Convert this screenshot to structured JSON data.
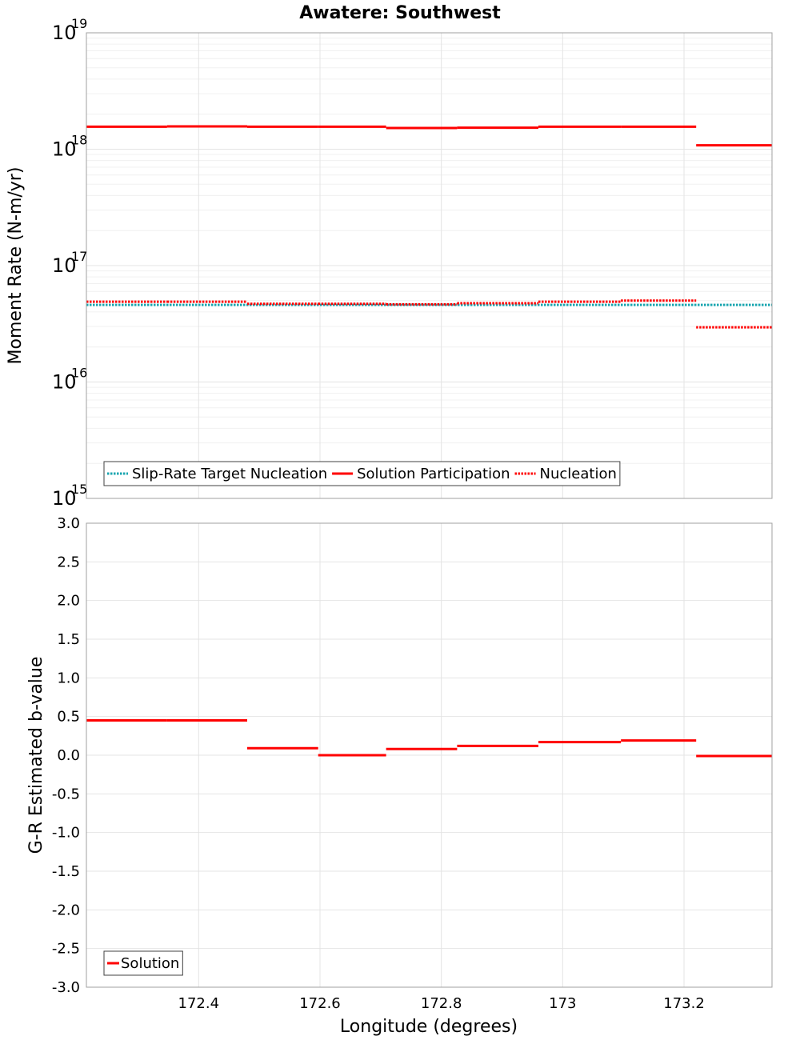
{
  "chart_data": [
    {
      "type": "line",
      "panel": "top",
      "title": "Awatere: Southwest",
      "xlabel": "",
      "ylabel": "Moment Rate (N-m/yr)",
      "yscale": "log",
      "ylim": [
        1000000000000000.0,
        1e+19
      ],
      "y_ticks": [
        {
          "base": "10",
          "exp": "15",
          "value": 1000000000000000.0
        },
        {
          "base": "10",
          "exp": "16",
          "value": 1e+16
        },
        {
          "base": "10",
          "exp": "17",
          "value": 1e+17
        },
        {
          "base": "10",
          "exp": "18",
          "value": 1e+18
        },
        {
          "base": "10",
          "exp": "19",
          "value": 1e+19
        }
      ],
      "xlim": [
        172.215,
        173.345
      ],
      "grid": true,
      "legend_position": "bottom-left",
      "series": [
        {
          "name": "Slip-Rate Target Nucleation",
          "color": "#1aa6b0",
          "style": "dotted",
          "segments": [
            [
              172.215,
              173.345,
              4.6e+16
            ]
          ]
        },
        {
          "name": "Solution Participation",
          "color": "#ff0000",
          "style": "solid",
          "segments": [
            [
              172.215,
              172.348,
              1.56e+18
            ],
            [
              172.348,
              172.48,
              1.57e+18
            ],
            [
              172.48,
              172.597,
              1.56e+18
            ],
            [
              172.597,
              172.709,
              1.56e+18
            ],
            [
              172.709,
              172.826,
              1.52e+18
            ],
            [
              172.826,
              172.96,
              1.53e+18
            ],
            [
              172.96,
              173.096,
              1.56e+18
            ],
            [
              173.096,
              173.22,
              1.56e+18
            ],
            [
              173.22,
              173.345,
              1.08e+18
            ]
          ]
        },
        {
          "name": "Nucleation",
          "color": "#ff0000",
          "style": "dotted",
          "segments": [
            [
              172.215,
              172.348,
              4.9e+16
            ],
            [
              172.348,
              172.48,
              4.9e+16
            ],
            [
              172.48,
              172.597,
              4.7e+16
            ],
            [
              172.597,
              172.709,
              4.7e+16
            ],
            [
              172.709,
              172.826,
              4.65e+16
            ],
            [
              172.826,
              172.96,
              4.75e+16
            ],
            [
              172.96,
              173.096,
              4.9e+16
            ],
            [
              173.096,
              173.22,
              5e+16
            ],
            [
              173.22,
              173.345,
              2.95e+16
            ]
          ]
        }
      ]
    },
    {
      "type": "line",
      "panel": "bottom",
      "title": "",
      "xlabel": "Longitude (degrees)",
      "ylabel": "G-R Estimated b-value",
      "ylim": [
        -3.0,
        3.0
      ],
      "y_ticks": [
        {
          "value": 3.0,
          "label": "3.0"
        },
        {
          "value": 2.5,
          "label": "2.5"
        },
        {
          "value": 2.0,
          "label": "2.0"
        },
        {
          "value": 1.5,
          "label": "1.5"
        },
        {
          "value": 1.0,
          "label": "1.0"
        },
        {
          "value": 0.5,
          "label": "0.5"
        },
        {
          "value": 0.0,
          "label": "0.0"
        },
        {
          "value": -0.5,
          "label": "-0.5"
        },
        {
          "value": -1.0,
          "label": "-1.0"
        },
        {
          "value": -1.5,
          "label": "-1.5"
        },
        {
          "value": -2.0,
          "label": "-2.0"
        },
        {
          "value": -2.5,
          "label": "-2.5"
        },
        {
          "value": -3.0,
          "label": "-3.0"
        }
      ],
      "xlim": [
        172.215,
        173.345
      ],
      "x_ticks": [
        {
          "value": 172.4,
          "label": "172.4"
        },
        {
          "value": 172.6,
          "label": "172.6"
        },
        {
          "value": 172.8,
          "label": "172.8"
        },
        {
          "value": 173.0,
          "label": "173"
        },
        {
          "value": 173.2,
          "label": "173.2"
        }
      ],
      "grid": true,
      "legend_position": "bottom-left",
      "series": [
        {
          "name": "Solution",
          "color": "#ff0000",
          "style": "solid",
          "segments": [
            [
              172.215,
              172.348,
              0.45
            ],
            [
              172.348,
              172.48,
              0.45
            ],
            [
              172.48,
              172.597,
              0.09
            ],
            [
              172.597,
              172.709,
              0.0
            ],
            [
              172.709,
              172.826,
              0.08
            ],
            [
              172.826,
              172.96,
              0.12
            ],
            [
              172.96,
              173.096,
              0.17
            ],
            [
              173.096,
              173.22,
              0.19
            ],
            [
              173.22,
              173.345,
              -0.01
            ]
          ]
        }
      ]
    }
  ]
}
